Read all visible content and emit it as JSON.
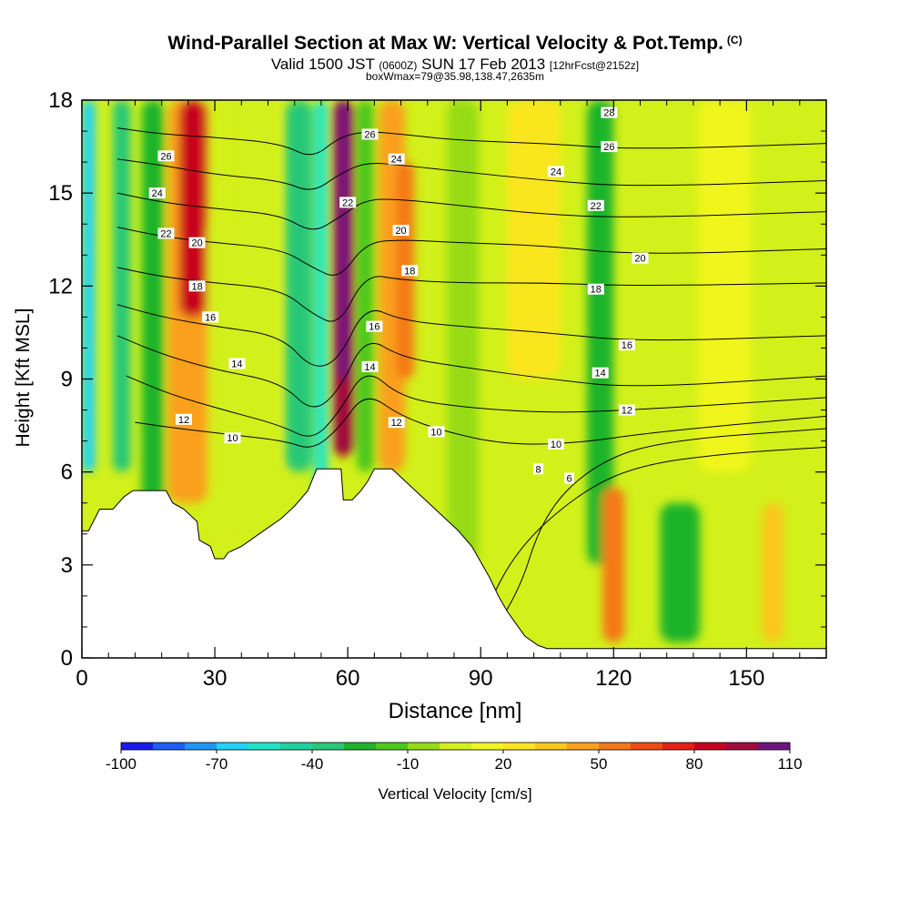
{
  "header": {
    "title": "Wind-Parallel Section at Max W: Vertical Velocity & Pot.Temp.",
    "title_tag": "(C)",
    "subtitle_a": "Valid 1500 JST",
    "subtitle_b": "(0600Z)",
    "subtitle_c": "SUN 17 Feb 2013",
    "subtitle_d": "[12hrFcst@2152z]",
    "subsubtitle": "boxWmax=79@35.98,138.47,2635m"
  },
  "chart_data": {
    "type": "heatmap",
    "xlabel": "Distance [nm]",
    "ylabel": "Height [Kft MSL]",
    "xlim": [
      0,
      168
    ],
    "ylim": [
      0,
      18
    ],
    "x_ticks": [
      0,
      30,
      60,
      90,
      120,
      150
    ],
    "y_ticks": [
      0,
      3,
      6,
      9,
      12,
      15,
      18
    ],
    "colorbar": {
      "label": "Vertical Velocity [cm/s]",
      "tick_labels": [
        "-100",
        "-70",
        "-40",
        "-10",
        "20",
        "50",
        "80",
        "110"
      ],
      "levels": [
        -100,
        -90,
        -80,
        -70,
        -60,
        -50,
        -40,
        -30,
        -20,
        -10,
        0,
        10,
        20,
        30,
        40,
        50,
        60,
        70,
        80,
        90,
        100,
        110
      ],
      "colors": [
        "#1a1aee",
        "#1e5cf5",
        "#1e96f8",
        "#23d2f8",
        "#20e6c8",
        "#1ed2a0",
        "#28c878",
        "#1eb42c",
        "#4cc81a",
        "#96dc14",
        "#d2f01a",
        "#f0f51e",
        "#fae61e",
        "#fac81a",
        "#faa01a",
        "#f57818",
        "#f04b14",
        "#e61e14",
        "#c8001e",
        "#a00a3c",
        "#6e1482"
      ]
    },
    "contour_labels": [
      "26",
      "24",
      "22",
      "20",
      "18",
      "16",
      "14",
      "12",
      "10",
      "8",
      "6"
    ],
    "terrain_kft": [
      [
        0,
        4.1
      ],
      [
        1.5,
        4.1
      ],
      [
        4,
        4.8
      ],
      [
        7,
        4.8
      ],
      [
        9.5,
        5.2
      ],
      [
        11.5,
        5.4
      ],
      [
        19,
        5.4
      ],
      [
        20.5,
        5.0
      ],
      [
        23,
        4.8
      ],
      [
        26,
        4.4
      ],
      [
        26.5,
        3.8
      ],
      [
        29,
        3.6
      ],
      [
        30,
        3.2
      ],
      [
        32,
        3.2
      ],
      [
        33,
        3.4
      ],
      [
        36,
        3.6
      ],
      [
        39,
        3.9
      ],
      [
        42,
        4.2
      ],
      [
        45,
        4.5
      ],
      [
        48,
        4.9
      ],
      [
        51,
        5.4
      ],
      [
        53,
        6.1
      ],
      [
        58.5,
        6.1
      ],
      [
        59,
        5.1
      ],
      [
        61,
        5.1
      ],
      [
        63,
        5.4
      ],
      [
        64.5,
        5.7
      ],
      [
        66,
        6.1
      ],
      [
        70,
        6.1
      ],
      [
        73,
        5.7
      ],
      [
        76,
        5.3
      ],
      [
        79,
        4.9
      ],
      [
        82,
        4.5
      ],
      [
        85,
        4.1
      ],
      [
        88,
        3.6
      ],
      [
        90,
        3.1
      ],
      [
        92,
        2.6
      ],
      [
        94,
        2.0
      ],
      [
        96,
        1.5
      ],
      [
        98,
        1.1
      ],
      [
        100,
        0.7
      ],
      [
        103,
        0.4
      ],
      [
        105,
        0.3
      ],
      [
        168,
        0.3
      ]
    ],
    "theta_contours_c": [
      {
        "value": 6,
        "points": [
          [
            72,
            -1
          ],
          [
            90,
            1.2
          ],
          [
            98,
            3.5
          ],
          [
            112,
            5.3
          ],
          [
            125,
            6.2
          ],
          [
            145,
            6.6
          ],
          [
            168,
            6.8
          ]
        ]
      },
      {
        "value": 8,
        "points": [
          [
            83,
            -1
          ],
          [
            98,
            1.8
          ],
          [
            104,
            4.6
          ],
          [
            115,
            6.2
          ],
          [
            130,
            7.0
          ],
          [
            168,
            7.4
          ]
        ]
      },
      {
        "value": 10,
        "points": [
          [
            12,
            7.6
          ],
          [
            22,
            7.4
          ],
          [
            34,
            7.2
          ],
          [
            46,
            7.0
          ],
          [
            52,
            6.7
          ],
          [
            58,
            7.4
          ],
          [
            64,
            8.6
          ],
          [
            72,
            7.8
          ],
          [
            82,
            7.3
          ],
          [
            95,
            6.9
          ],
          [
            110,
            6.9
          ],
          [
            130,
            7.3
          ],
          [
            168,
            7.8
          ]
        ]
      },
      {
        "value": 12,
        "points": [
          [
            10,
            9.1
          ],
          [
            20,
            8.5
          ],
          [
            32,
            8.0
          ],
          [
            45,
            7.5
          ],
          [
            52,
            7.0
          ],
          [
            58,
            7.9
          ],
          [
            64,
            9.4
          ],
          [
            72,
            8.4
          ],
          [
            85,
            8.1
          ],
          [
            105,
            7.9
          ],
          [
            125,
            8.0
          ],
          [
            168,
            8.4
          ]
        ]
      },
      {
        "value": 14,
        "points": [
          [
            8,
            10.4
          ],
          [
            18,
            9.8
          ],
          [
            30,
            9.3
          ],
          [
            45,
            8.9
          ],
          [
            52,
            7.9
          ],
          [
            58,
            8.6
          ],
          [
            64,
            10.4
          ],
          [
            72,
            9.7
          ],
          [
            85,
            9.4
          ],
          [
            105,
            9.0
          ],
          [
            125,
            8.7
          ],
          [
            168,
            9.1
          ]
        ]
      },
      {
        "value": 16,
        "points": [
          [
            8,
            11.4
          ],
          [
            18,
            11.0
          ],
          [
            30,
            10.7
          ],
          [
            45,
            10.4
          ],
          [
            52,
            9.3
          ],
          [
            58,
            9.6
          ],
          [
            64,
            11.4
          ],
          [
            72,
            10.9
          ],
          [
            85,
            10.7
          ],
          [
            105,
            10.5
          ],
          [
            125,
            10.2
          ],
          [
            168,
            10.4
          ]
        ]
      },
      {
        "value": 18,
        "points": [
          [
            8,
            12.6
          ],
          [
            18,
            12.3
          ],
          [
            30,
            12.1
          ],
          [
            45,
            11.9
          ],
          [
            52,
            11.1
          ],
          [
            58,
            10.7
          ],
          [
            64,
            12.4
          ],
          [
            72,
            12.2
          ],
          [
            85,
            12.1
          ],
          [
            105,
            12.1
          ],
          [
            125,
            12.0
          ],
          [
            168,
            12.1
          ]
        ]
      },
      {
        "value": 20,
        "points": [
          [
            8,
            13.9
          ],
          [
            18,
            13.6
          ],
          [
            30,
            13.4
          ],
          [
            45,
            13.2
          ],
          [
            52,
            12.6
          ],
          [
            58,
            12.2
          ],
          [
            64,
            13.4
          ],
          [
            72,
            13.5
          ],
          [
            85,
            13.4
          ],
          [
            105,
            13.3
          ],
          [
            125,
            13.0
          ],
          [
            168,
            13.2
          ]
        ]
      },
      {
        "value": 22,
        "points": [
          [
            8,
            15.0
          ],
          [
            18,
            14.7
          ],
          [
            30,
            14.5
          ],
          [
            45,
            14.3
          ],
          [
            52,
            13.7
          ],
          [
            58,
            14.2
          ],
          [
            64,
            14.8
          ],
          [
            72,
            14.8
          ],
          [
            85,
            14.6
          ],
          [
            105,
            14.3
          ],
          [
            125,
            14.2
          ],
          [
            168,
            14.4
          ]
        ]
      },
      {
        "value": 24,
        "points": [
          [
            8,
            16.1
          ],
          [
            18,
            15.9
          ],
          [
            30,
            15.6
          ],
          [
            45,
            15.4
          ],
          [
            52,
            15.0
          ],
          [
            58,
            15.6
          ],
          [
            64,
            16.0
          ],
          [
            72,
            15.9
          ],
          [
            85,
            15.7
          ],
          [
            105,
            15.4
          ],
          [
            125,
            15.2
          ],
          [
            168,
            15.4
          ]
        ]
      },
      {
        "value": 26,
        "points": [
          [
            8,
            17.1
          ],
          [
            18,
            16.9
          ],
          [
            30,
            16.8
          ],
          [
            45,
            16.6
          ],
          [
            52,
            16.1
          ],
          [
            58,
            16.8
          ],
          [
            64,
            17.0
          ],
          [
            72,
            16.9
          ],
          [
            85,
            16.7
          ],
          [
            105,
            16.6
          ],
          [
            125,
            16.4
          ],
          [
            168,
            16.6
          ]
        ]
      }
    ],
    "theta_label_positions": [
      {
        "text": "26",
        "x": 19,
        "y": 16.2
      },
      {
        "text": "24",
        "x": 17,
        "y": 15.0
      },
      {
        "text": "22",
        "x": 19,
        "y": 13.7
      },
      {
        "text": "20",
        "x": 26,
        "y": 13.4
      },
      {
        "text": "18",
        "x": 26,
        "y": 12.0
      },
      {
        "text": "16",
        "x": 29,
        "y": 11.0
      },
      {
        "text": "14",
        "x": 35,
        "y": 9.5
      },
      {
        "text": "12",
        "x": 23,
        "y": 7.7
      },
      {
        "text": "10",
        "x": 34,
        "y": 7.1
      },
      {
        "text": "26",
        "x": 65,
        "y": 16.9
      },
      {
        "text": "24",
        "x": 71,
        "y": 16.1
      },
      {
        "text": "22",
        "x": 60,
        "y": 14.7
      },
      {
        "text": "20",
        "x": 72,
        "y": 13.8
      },
      {
        "text": "18",
        "x": 74,
        "y": 12.5
      },
      {
        "text": "16",
        "x": 66,
        "y": 10.7
      },
      {
        "text": "14",
        "x": 65,
        "y": 9.4
      },
      {
        "text": "12",
        "x": 71,
        "y": 7.6
      },
      {
        "text": "10",
        "x": 80,
        "y": 7.3
      },
      {
        "text": "28",
        "x": 119,
        "y": 17.6
      },
      {
        "text": "26",
        "x": 119,
        "y": 16.5
      },
      {
        "text": "24",
        "x": 107,
        "y": 15.7
      },
      {
        "text": "22",
        "x": 116,
        "y": 14.6
      },
      {
        "text": "20",
        "x": 126,
        "y": 12.9
      },
      {
        "text": "18",
        "x": 116,
        "y": 11.9
      },
      {
        "text": "16",
        "x": 123,
        "y": 10.1
      },
      {
        "text": "14",
        "x": 117,
        "y": 9.2
      },
      {
        "text": "12",
        "x": 123,
        "y": 8.0
      },
      {
        "text": "10",
        "x": 107,
        "y": 6.9
      },
      {
        "text": "8",
        "x": 103,
        "y": 6.1
      },
      {
        "text": "6",
        "x": 110,
        "y": 5.8
      }
    ],
    "w_features_cms": [
      {
        "x": 1.5,
        "y0": 6,
        "y1": 18,
        "w": 3,
        "value": -65
      },
      {
        "x": 9,
        "y0": 6,
        "y1": 18,
        "w": 4,
        "value": -35
      },
      {
        "x": 16,
        "y0": 4.5,
        "y1": 18,
        "w": 5,
        "value": -30
      },
      {
        "x": 24,
        "y0": 5,
        "y1": 18,
        "w": 9,
        "value": 45
      },
      {
        "x": 25,
        "y0": 11,
        "y1": 18,
        "w": 6,
        "value": 80
      },
      {
        "x": 31,
        "y0": 4,
        "y1": 14,
        "w": 5,
        "value": 0
      },
      {
        "x": 40,
        "y0": 4,
        "y1": 18,
        "w": 8,
        "value": 0
      },
      {
        "x": 49,
        "y0": 6,
        "y1": 18,
        "w": 6,
        "value": -35
      },
      {
        "x": 54,
        "y0": 5,
        "y1": 18,
        "w": 3,
        "value": -55
      },
      {
        "x": 59,
        "y0": 6.5,
        "y1": 18,
        "w": 5,
        "value": 95
      },
      {
        "x": 59,
        "y0": 9,
        "y1": 18,
        "w": 2.5,
        "value": 105
      },
      {
        "x": 64,
        "y0": 6,
        "y1": 18,
        "w": 4,
        "value": -20
      },
      {
        "x": 70,
        "y0": 6,
        "y1": 18,
        "w": 6,
        "value": 40
      },
      {
        "x": 73,
        "y0": 9,
        "y1": 16,
        "w": 4,
        "value": 55
      },
      {
        "x": 86,
        "y0": 3,
        "y1": 18,
        "w": 7,
        "value": -10
      },
      {
        "x": 102,
        "y0": 9,
        "y1": 18,
        "w": 12,
        "value": 20
      },
      {
        "x": 117,
        "y0": 3,
        "y1": 18,
        "w": 6,
        "value": -25
      },
      {
        "x": 120,
        "y0": 0.5,
        "y1": 5.5,
        "w": 5,
        "value": 50
      },
      {
        "x": 135,
        "y0": 0.5,
        "y1": 5,
        "w": 9,
        "value": -25
      },
      {
        "x": 145,
        "y0": 6,
        "y1": 18,
        "w": 12,
        "value": 10
      },
      {
        "x": 156,
        "y0": 0.5,
        "y1": 5,
        "w": 5,
        "value": 30
      }
    ]
  }
}
